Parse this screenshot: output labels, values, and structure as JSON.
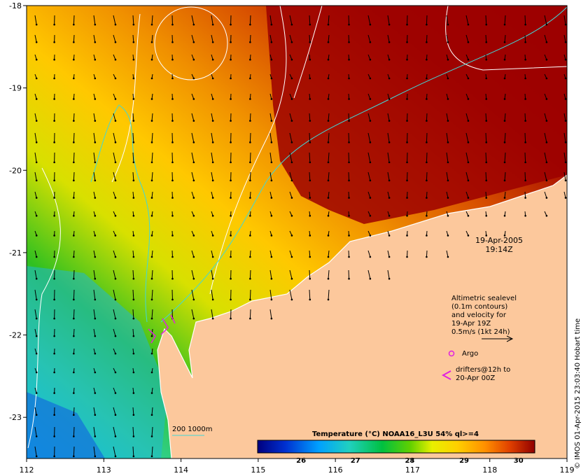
{
  "map": {
    "lon_ticks": [
      "112",
      "113",
      "114",
      "115",
      "116",
      "117",
      "118",
      "119"
    ],
    "lat_ticks": [
      "-18",
      "-19",
      "-20",
      "-21",
      "-22",
      "-23"
    ],
    "lon_range": [
      112,
      119
    ],
    "lat_range": [
      -18,
      -23.5
    ],
    "date": "19-Apr-2005",
    "time": "19:14Z",
    "credit": "© IMOS 01-Apr-2015 23:03:40 Hobart time",
    "land_color": "#fcc89c",
    "sea_colormap": [
      "#00007f",
      "#0040ff",
      "#00c8ff",
      "#30e0a0",
      "#00c000",
      "#d4e000",
      "#ffd000",
      "#ff9a00",
      "#e85000",
      "#a00000"
    ]
  },
  "legend": {
    "altimetry_lines": [
      "Altimetric sealevel",
      "(0.1m contours)",
      "and velocity for",
      "19-Apr 19Z",
      "0.5m/s (1kt 24h)"
    ],
    "argo_label": "Argo",
    "drifters_lines": [
      "drifters@12h to",
      "20-Apr 00Z"
    ],
    "isobath_label": "200  1000m"
  },
  "colorbar": {
    "title": "Temperature (°C) NOAA16_L3U 54% ql>=4",
    "ticks": [
      "26",
      "27",
      "28",
      "29",
      "30"
    ],
    "range": [
      25.2,
      30.3
    ]
  }
}
